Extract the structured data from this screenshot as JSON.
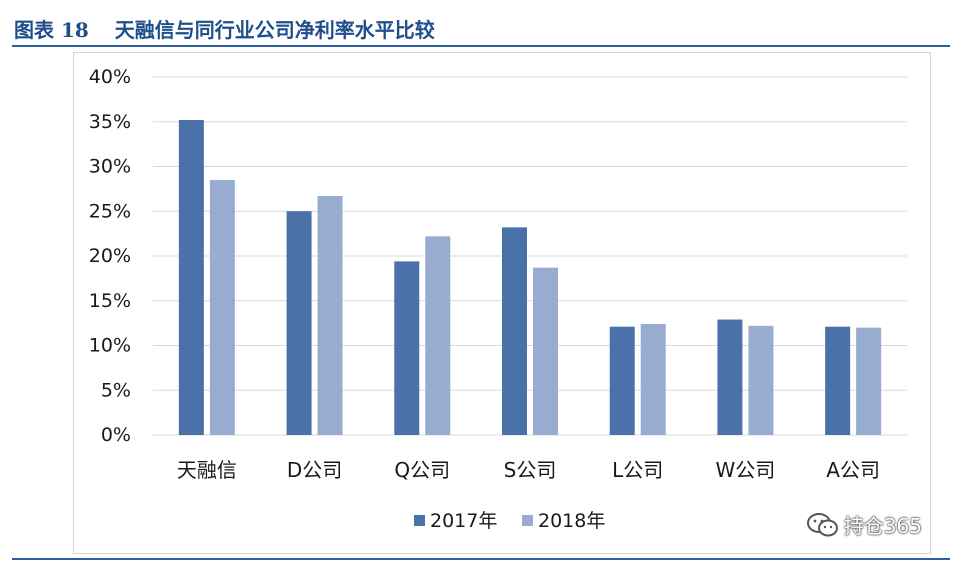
{
  "header": {
    "figure_num": "图表 18",
    "title": "天融信与同行业公司净利率水平比较"
  },
  "watermark": {
    "text": "持仓365",
    "icon": "wechat-icon"
  },
  "colors": {
    "series_2017": "#4a72a9",
    "series_2018": "#98acd1",
    "header": "#1f4e8c"
  },
  "chart_data": {
    "type": "bar",
    "categories": [
      "天融信",
      "D公司",
      "Q公司",
      "S公司",
      "L公司",
      "W公司",
      "A公司"
    ],
    "series": [
      {
        "name": "2017年",
        "values": [
          35.2,
          25.0,
          19.4,
          23.2,
          12.1,
          12.9,
          12.1
        ]
      },
      {
        "name": "2018年",
        "values": [
          28.5,
          26.7,
          22.2,
          18.7,
          12.4,
          12.2,
          12.0
        ]
      }
    ],
    "yticks": [
      "0%",
      "5%",
      "10%",
      "15%",
      "20%",
      "25%",
      "30%",
      "35%",
      "40%"
    ],
    "ylim": [
      0,
      40
    ],
    "grid": true,
    "legend": "bottom"
  }
}
